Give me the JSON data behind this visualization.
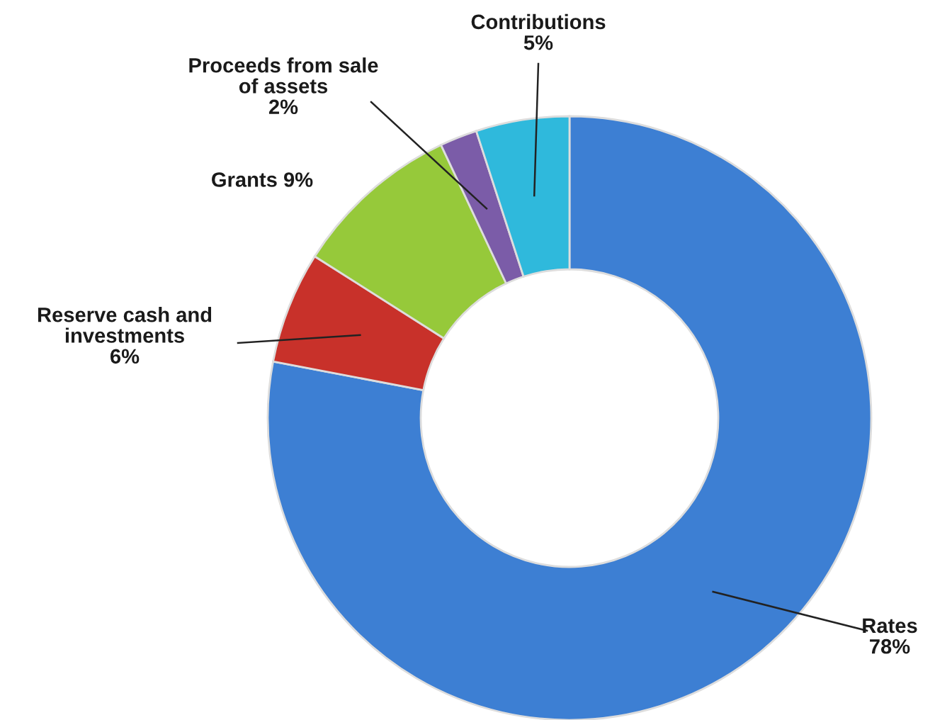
{
  "chart_data": {
    "type": "donut",
    "categories": [
      "Rates",
      "Reserve cash and investments",
      "Grants",
      "Proceeds from sale of assets",
      "Contributions"
    ],
    "values": [
      78,
      6,
      9,
      2,
      5
    ],
    "value_labels": [
      "78%",
      "6%",
      "9%",
      "2%",
      "5%"
    ],
    "colors": [
      "#3d7fd3",
      "#c8312a",
      "#96c93a",
      "#7b5ca8",
      "#2fb9dc"
    ]
  }
}
